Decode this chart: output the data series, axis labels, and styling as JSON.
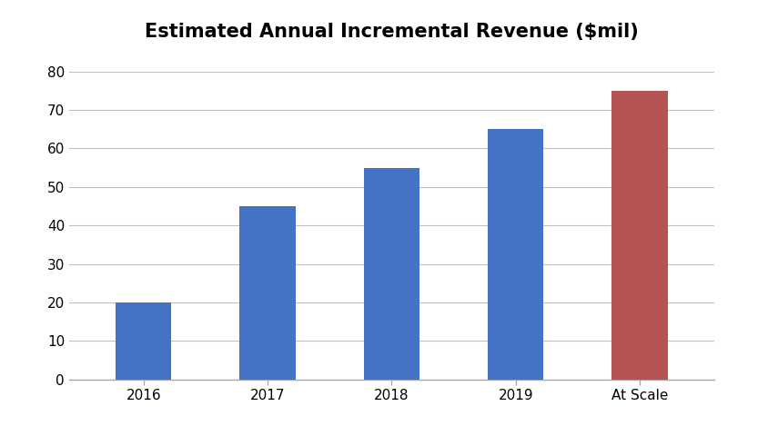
{
  "title": "Estimated Annual Incremental Revenue ($mil)",
  "categories": [
    "2016",
    "2017",
    "2018",
    "2019",
    "At Scale"
  ],
  "values": [
    20,
    45,
    55,
    65,
    75
  ],
  "bar_colors": [
    "#4472C4",
    "#4472C4",
    "#4472C4",
    "#4472C4",
    "#B55252"
  ],
  "ylim": [
    0,
    85
  ],
  "yticks": [
    0,
    10,
    20,
    30,
    40,
    50,
    60,
    70,
    80
  ],
  "grid_color": "#C0C0C0",
  "background_color": "#FFFFFF",
  "title_fontsize": 15,
  "tick_fontsize": 11,
  "bar_width": 0.45,
  "title_fontweight": "bold",
  "spine_color": "#AAAAAA",
  "fig_width": 8.44,
  "fig_height": 4.8,
  "dpi": 100
}
